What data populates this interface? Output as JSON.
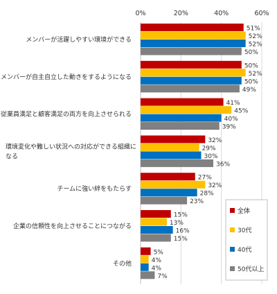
{
  "chart_data": {
    "type": "bar",
    "orientation": "horizontal",
    "xlim": [
      0,
      60
    ],
    "x_ticks": [
      "0%",
      "20%",
      "40%",
      "60%"
    ],
    "tick_values": [
      0,
      20,
      40,
      60
    ],
    "grid": true,
    "legend_position": "bottom-right",
    "categories": [
      "メンバーが活躍しやすい環境ができる",
      "メンバーが自主自立した動きをするようになる",
      "従業員満足と顧客満足の両方を向上させられる",
      "環境変化や難しい状況への対応ができる組織に\nなる",
      "チームに強い絆をもたらす",
      "企業の信頼性を向上させることにつながる",
      "その他"
    ],
    "series": [
      {
        "name": "全体",
        "color": "#c00000",
        "values": [
          51,
          50,
          41,
          32,
          27,
          15,
          5
        ]
      },
      {
        "name": "30代",
        "color": "#ffc000",
        "values": [
          52,
          52,
          45,
          29,
          32,
          13,
          4
        ]
      },
      {
        "name": "40代",
        "color": "#0070c0",
        "values": [
          52,
          50,
          40,
          30,
          28,
          16,
          4
        ]
      },
      {
        "name": "50代以上",
        "color": "#808080",
        "values": [
          50,
          49,
          39,
          36,
          23,
          15,
          7
        ]
      }
    ],
    "value_suffix": "%"
  }
}
